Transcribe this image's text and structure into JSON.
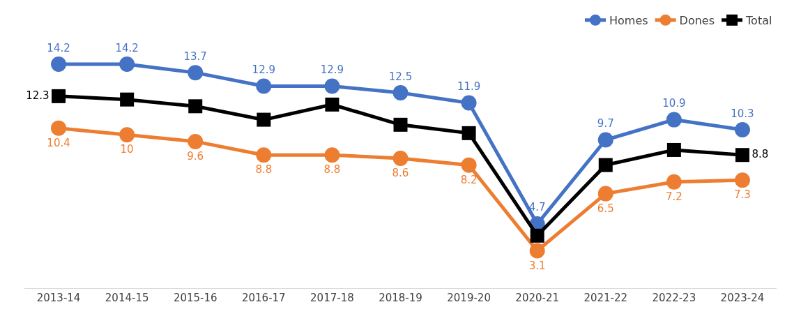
{
  "chart_data": {
    "type": "line",
    "categories": [
      "2013-14",
      "2014-15",
      "2015-16",
      "2016-17",
      "2017-18",
      "2018-19",
      "2019-20",
      "2020-21",
      "2021-22",
      "2022-23",
      "2023-24"
    ],
    "series": [
      {
        "name": "Homes",
        "color": "#4472c4",
        "marker": "circle",
        "values": [
          14.2,
          14.2,
          13.7,
          12.9,
          12.9,
          12.5,
          11.9,
          4.7,
          9.7,
          10.9,
          10.3
        ],
        "value_labels": [
          "14.2",
          "14.2",
          "13.7",
          "12.9",
          "12.9",
          "12.5",
          "11.9",
          "4.7",
          "9.7",
          "10.9",
          "10.3"
        ]
      },
      {
        "name": "Dones",
        "color": "#ed7d31",
        "marker": "circle",
        "values": [
          10.4,
          10,
          9.6,
          8.8,
          8.8,
          8.6,
          8.2,
          3.1,
          6.5,
          7.2,
          7.3
        ],
        "value_labels": [
          "10.4",
          "10",
          "9.6",
          "8.8",
          "8.8",
          "8.6",
          "8.2",
          "3.1",
          "6.5",
          "7.2",
          "7.3"
        ]
      },
      {
        "name": "Total",
        "color": "#000000",
        "marker": "square",
        "values": [
          12.3,
          12.1,
          11.7,
          10.9,
          11.8,
          10.6,
          10.1,
          4.0,
          8.2,
          9.1,
          8.8
        ],
        "value_labels": [
          "12.3",
          null,
          null,
          null,
          null,
          null,
          null,
          null,
          null,
          null,
          "8.8"
        ]
      }
    ],
    "tick_labels": "x",
    "legend": "top right"
  }
}
